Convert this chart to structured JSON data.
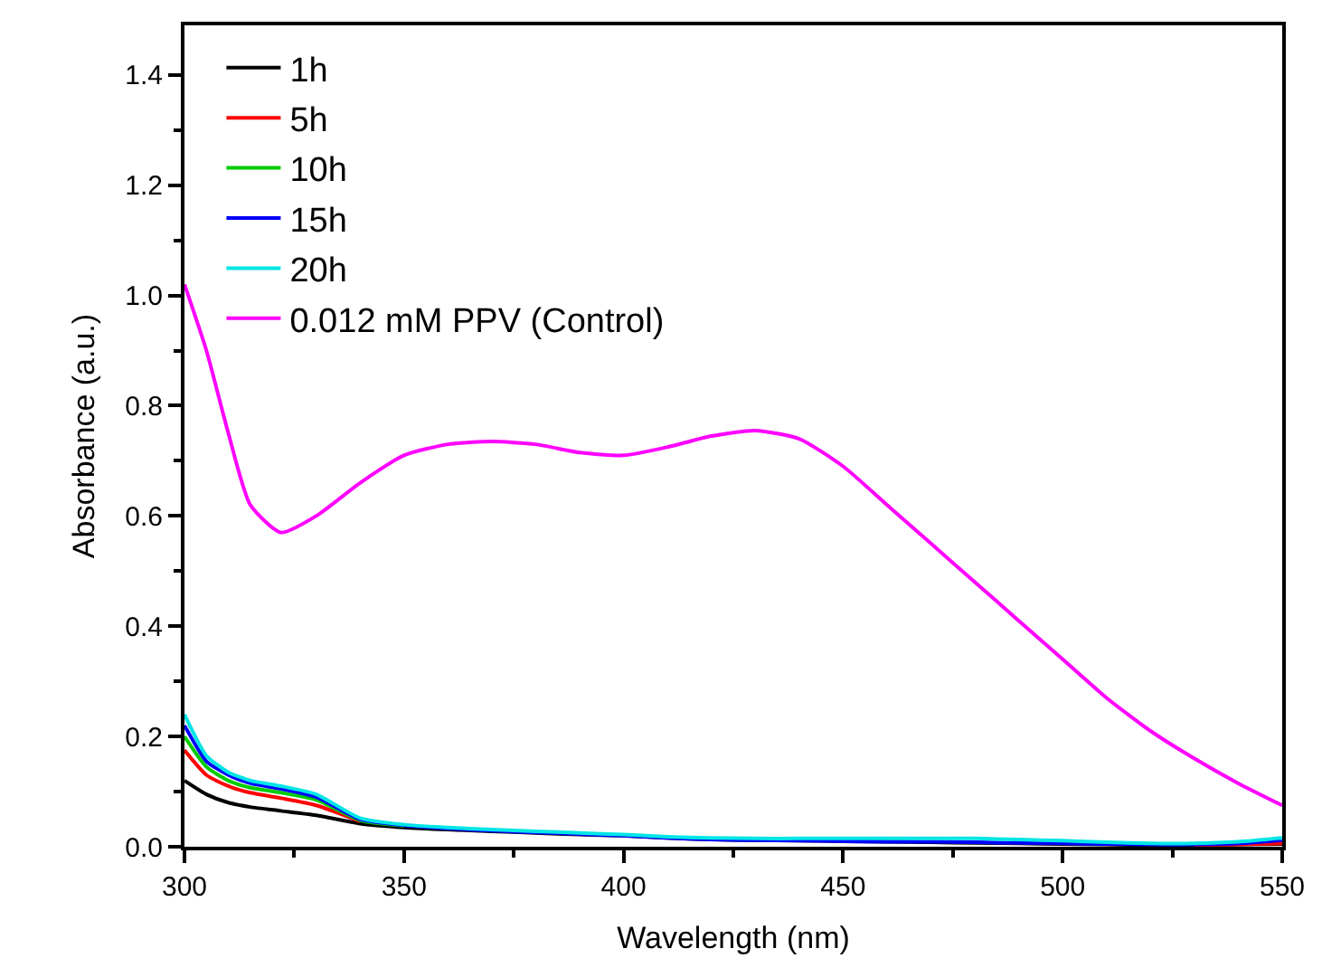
{
  "chart_data": {
    "type": "line",
    "xlabel": "Wavelength (nm)",
    "ylabel": "Absorbance (a.u.)",
    "x": [
      300,
      305,
      310,
      315,
      322,
      330,
      340,
      350,
      360,
      370,
      380,
      390,
      400,
      410,
      420,
      430,
      440,
      450,
      460,
      470,
      480,
      490,
      500,
      510,
      520,
      530,
      540,
      550
    ],
    "xlim": [
      300,
      550
    ],
    "xticks": [
      300,
      350,
      400,
      450,
      500,
      550
    ],
    "ylim": [
      0,
      1.49
    ],
    "yticks": [
      {
        "value": 0,
        "label": "0.0"
      },
      0.2,
      0.4,
      0.6,
      0.8,
      {
        "value": 1,
        "label": "1.0"
      },
      1.2,
      1.4
    ],
    "grid": false,
    "legend": "top left",
    "line_style": "solid",
    "marker": "none",
    "series": [
      {
        "name": "1h",
        "color": "#000000",
        "values": [
          0.12,
          0.095,
          0.08,
          0.072,
          0.065,
          0.057,
          0.042,
          0.035,
          0.031,
          0.028,
          0.025,
          0.022,
          0.02,
          0.016,
          0.013,
          0.012,
          0.011,
          0.01,
          0.009,
          0.008,
          0.007,
          0.006,
          0.005,
          0.004,
          0.003,
          0.003,
          0.004,
          0.005
        ]
      },
      {
        "name": "5h",
        "color": "#ff0000",
        "values": [
          0.175,
          0.13,
          0.11,
          0.098,
          0.088,
          0.075,
          0.046,
          null,
          null,
          null,
          null,
          null,
          null,
          null,
          null,
          null,
          null,
          null,
          null,
          null,
          null,
          null,
          null,
          null,
          null,
          0.003,
          0.004,
          0.006
        ]
      },
      {
        "name": "10h",
        "color": "#00cc00",
        "values": [
          0.2,
          0.145,
          0.12,
          0.107,
          0.098,
          0.085,
          0.048,
          0.038,
          null,
          null,
          null,
          null,
          null,
          null,
          null,
          null,
          null,
          null,
          null,
          null,
          null,
          null,
          null,
          null,
          null,
          null,
          null,
          null
        ]
      },
      {
        "name": "15h",
        "color": "#0000ff",
        "values": [
          0.22,
          0.155,
          0.13,
          0.115,
          0.105,
          0.09,
          0.05,
          0.039,
          0.033,
          0.029,
          0.026,
          0.023,
          0.02,
          0.016,
          0.013,
          0.012,
          0.011,
          0.01,
          0.009,
          0.009,
          0.008,
          0.007,
          0.006,
          0.005,
          0.004,
          0.004,
          0.006,
          0.012
        ]
      },
      {
        "name": "20h",
        "color": "#00e5e5",
        "values": [
          0.24,
          0.165,
          0.135,
          0.12,
          0.11,
          0.095,
          0.052,
          0.04,
          0.035,
          0.031,
          0.028,
          0.025,
          0.022,
          0.018,
          0.016,
          0.015,
          0.015,
          0.015,
          0.015,
          0.015,
          0.015,
          0.013,
          0.011,
          0.008,
          0.006,
          0.006,
          0.009,
          0.016
        ]
      },
      {
        "name": "0.012 mM PPV (Control)",
        "color": "#ff00ff",
        "values": [
          1.02,
          0.9,
          0.75,
          0.62,
          0.57,
          0.6,
          0.66,
          0.71,
          0.73,
          0.735,
          0.73,
          0.715,
          0.71,
          0.725,
          0.745,
          0.755,
          0.74,
          0.69,
          0.62,
          0.55,
          0.48,
          0.41,
          0.34,
          0.27,
          0.21,
          0.16,
          0.115,
          0.075
        ]
      }
    ]
  }
}
